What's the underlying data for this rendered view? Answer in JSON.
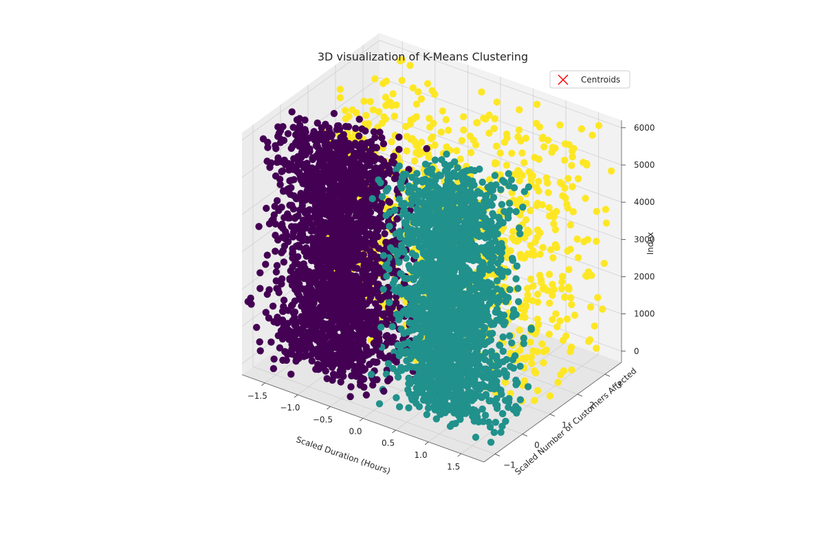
{
  "chart_data": {
    "type": "scatter",
    "projection": "3d",
    "title": "3D visualization of K-Means Clustering",
    "xlabel": "Scaled Duration (Hours)",
    "ylabel": "Scaled Number of Customers Affected",
    "zlabel": "Index",
    "xlim": [
      -1.85,
      1.85
    ],
    "ylim": [
      -1.4,
      3.6
    ],
    "zlim": [
      -300,
      6200
    ],
    "xticks": [
      -1.5,
      -1.0,
      -0.5,
      0.0,
      0.5,
      1.0,
      1.5
    ],
    "xtick_labels": [
      "−1.5",
      "−1.0",
      "−0.5",
      "0.0",
      "0.5",
      "1.0",
      "1.5"
    ],
    "yticks": [
      -1,
      0,
      1,
      2,
      3
    ],
    "ytick_labels": [
      "−1",
      "0",
      "1",
      "2",
      "3"
    ],
    "zticks": [
      0,
      1000,
      2000,
      3000,
      4000,
      5000,
      6000
    ],
    "ztick_labels": [
      "0",
      "1000",
      "2000",
      "3000",
      "4000",
      "5000",
      "6000"
    ],
    "grid": true,
    "legend": {
      "position": "top-right",
      "entries": [
        {
          "label": "Centroids",
          "marker": "x",
          "color": "#ff0000"
        }
      ]
    },
    "series": [
      {
        "cluster": 0,
        "color": "#440154",
        "x_range": [
          -1.8,
          0.2
        ],
        "y_range": [
          -1.3,
          0.6
        ],
        "z_range": [
          0,
          6100
        ],
        "approx_points": 2100
      },
      {
        "cluster": 1,
        "color": "#21918c",
        "x_range": [
          0.0,
          1.8
        ],
        "y_range": [
          -1.3,
          0.6
        ],
        "z_range": [
          0,
          6100
        ],
        "approx_points": 2100
      },
      {
        "cluster": 2,
        "color": "#fde725",
        "x_range": [
          -1.6,
          1.8
        ],
        "y_range": [
          0.6,
          3.5
        ],
        "z_range": [
          0,
          6100
        ],
        "approx_points": 900
      }
    ]
  }
}
